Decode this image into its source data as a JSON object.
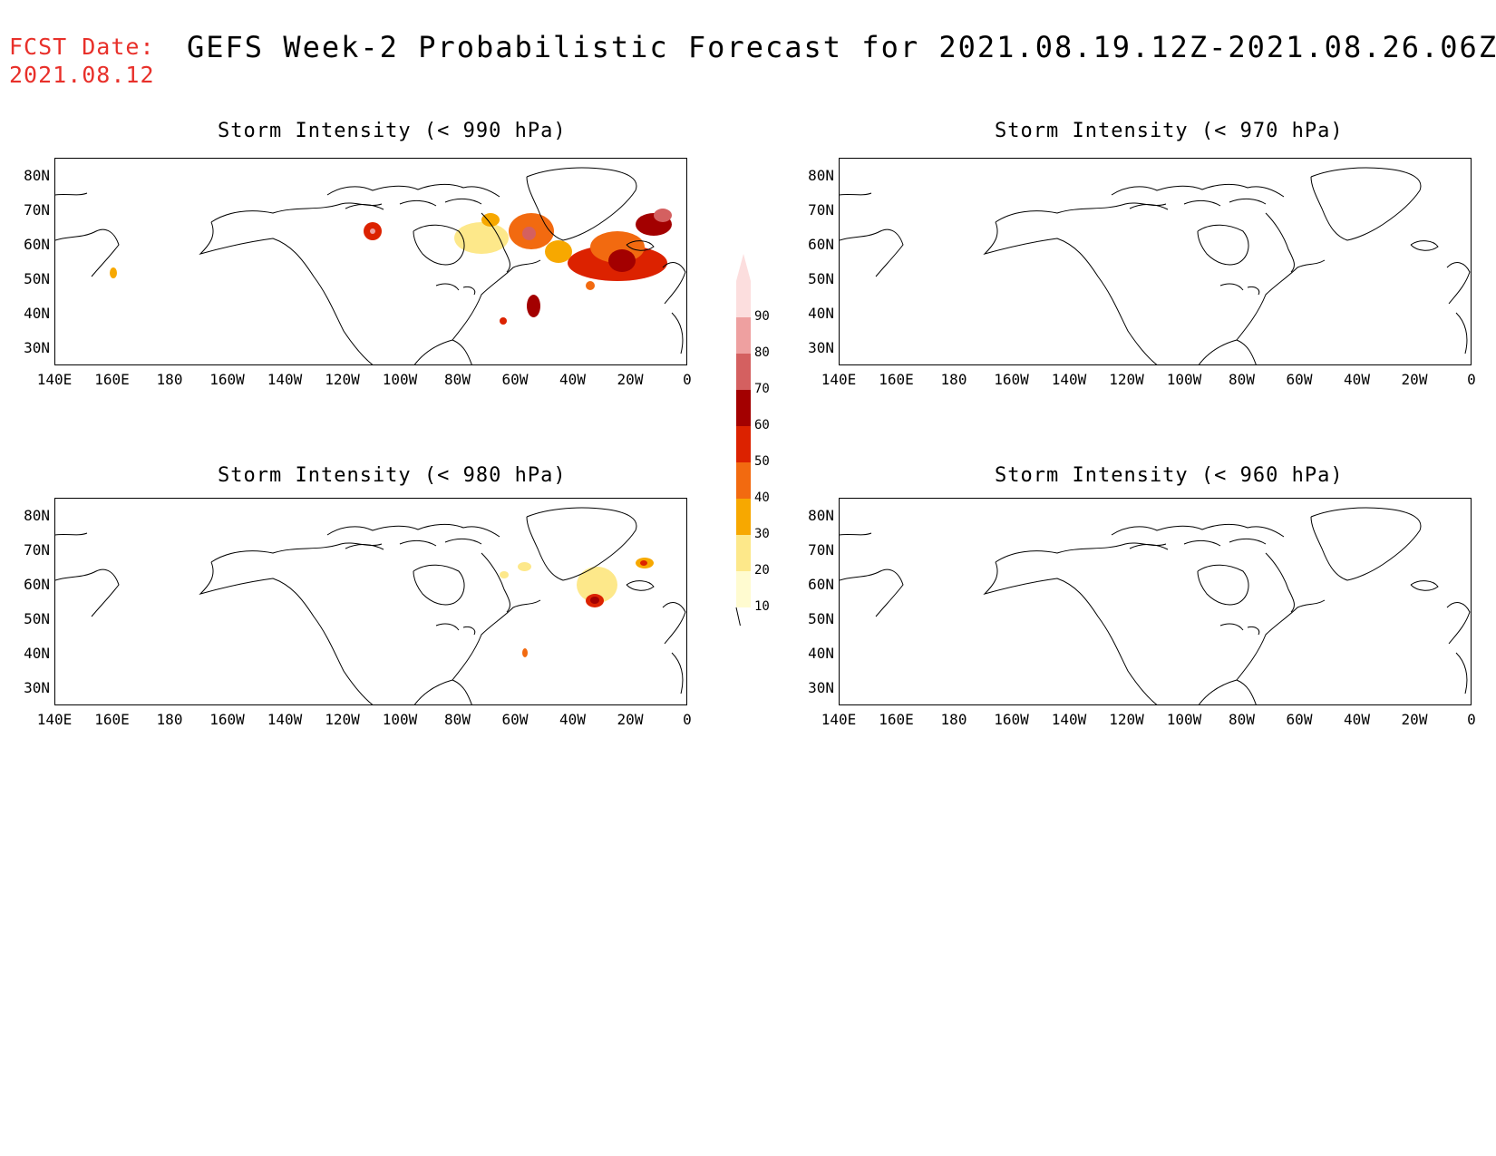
{
  "header": {
    "fcst_label": "FCST Date:",
    "fcst_date": "2021.08.12",
    "title": "GEFS Week-2 Probabilistic Forecast for 2021.08.19.12Z-2021.08.26.06Z"
  },
  "axes": {
    "lat_labels": [
      "80N",
      "70N",
      "60N",
      "50N",
      "40N",
      "30N"
    ],
    "lon_labels": [
      "140E",
      "160E",
      "180",
      "160W",
      "140W",
      "120W",
      "100W",
      "80W",
      "60W",
      "40W",
      "20W",
      "0"
    ]
  },
  "panels": [
    {
      "title": "Storm Intensity (< 990 hPa)"
    },
    {
      "title": "Storm Intensity (< 970 hPa)"
    },
    {
      "title": "Storm Intensity (< 980 hPa)"
    },
    {
      "title": "Storm Intensity (< 960 hPa)"
    }
  ],
  "colorbar": {
    "levels": [
      "10",
      "20",
      "30",
      "40",
      "50",
      "60",
      "70",
      "80",
      "90"
    ],
    "colors": [
      "#fffbd0",
      "#fde88a",
      "#f7a800",
      "#f26a10",
      "#dc2200",
      "#a30000",
      "#d46060",
      "#eea0a0",
      "#fcdede"
    ]
  }
}
